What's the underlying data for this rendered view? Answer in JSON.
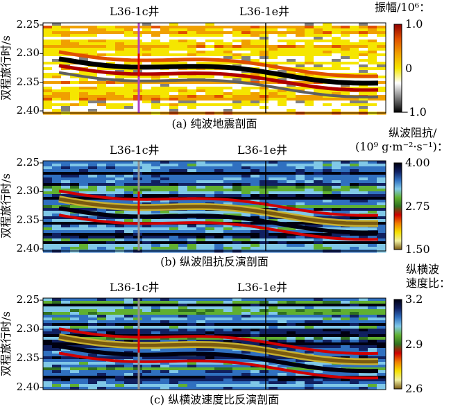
{
  "chart_data": [
    {
      "type": "heatmap",
      "title": "(a) 纯波地震剖面",
      "ylabel": "双程旅行时/s",
      "yticks": [
        "2.25",
        "2.30",
        "2.35",
        "2.40"
      ],
      "ylim": [
        2.4,
        2.25
      ],
      "wells": [
        "L36-1c井",
        "L36-1e井"
      ],
      "colorbar": {
        "label": "振幅/10⁶：",
        "ticks": [
          "1.0",
          "0",
          "−1.0"
        ],
        "range": [
          -1.0,
          1.0
        ],
        "colors": [
          "#000000",
          "#808080",
          "#ffffff",
          "#f5e600",
          "#f0a000",
          "#e05000",
          "#900000"
        ]
      }
    },
    {
      "type": "heatmap",
      "title": "(b) 纵波阻抗反演剖面",
      "ylabel": "双程旅行时/s",
      "yticks": [
        "2.25",
        "2.30",
        "2.35",
        "2.40"
      ],
      "ylim": [
        2.4,
        2.25
      ],
      "wells": [
        "L36-1c井",
        "L36-1e井"
      ],
      "colorbar": {
        "label": "纵波阻抗/",
        "label2": "(10⁹ g·m⁻²·s⁻¹)：",
        "ticks": [
          "4.00",
          "2.75",
          "1.50"
        ],
        "range": [
          1.5,
          4.0
        ],
        "colors": [
          "#7a5a10",
          "#f0f0a0",
          "#f5e000",
          "#f08000",
          "#d00000",
          "#307020",
          "#60b030",
          "#80c8e8",
          "#3070c0",
          "#102060",
          "#000010"
        ]
      }
    },
    {
      "type": "heatmap",
      "title": "(c) 纵横波速度比反演剖面",
      "ylabel": "双程旅行时/s",
      "yticks": [
        "2.25",
        "2.30",
        "2.35",
        "2.40"
      ],
      "ylim": [
        2.4,
        2.25
      ],
      "wells": [
        "L36-1c井",
        "L36-1e井"
      ],
      "colorbar": {
        "label": "纵横波",
        "label2": "速度比：",
        "ticks": [
          "3.2",
          "2.9",
          "2.6"
        ],
        "range": [
          2.6,
          3.2
        ],
        "colors": [
          "#7a5a10",
          "#f0f0a0",
          "#f5e000",
          "#f08000",
          "#d00000",
          "#307020",
          "#60b030",
          "#80c8e8",
          "#3070c0",
          "#102060",
          "#000010"
        ]
      }
    }
  ]
}
